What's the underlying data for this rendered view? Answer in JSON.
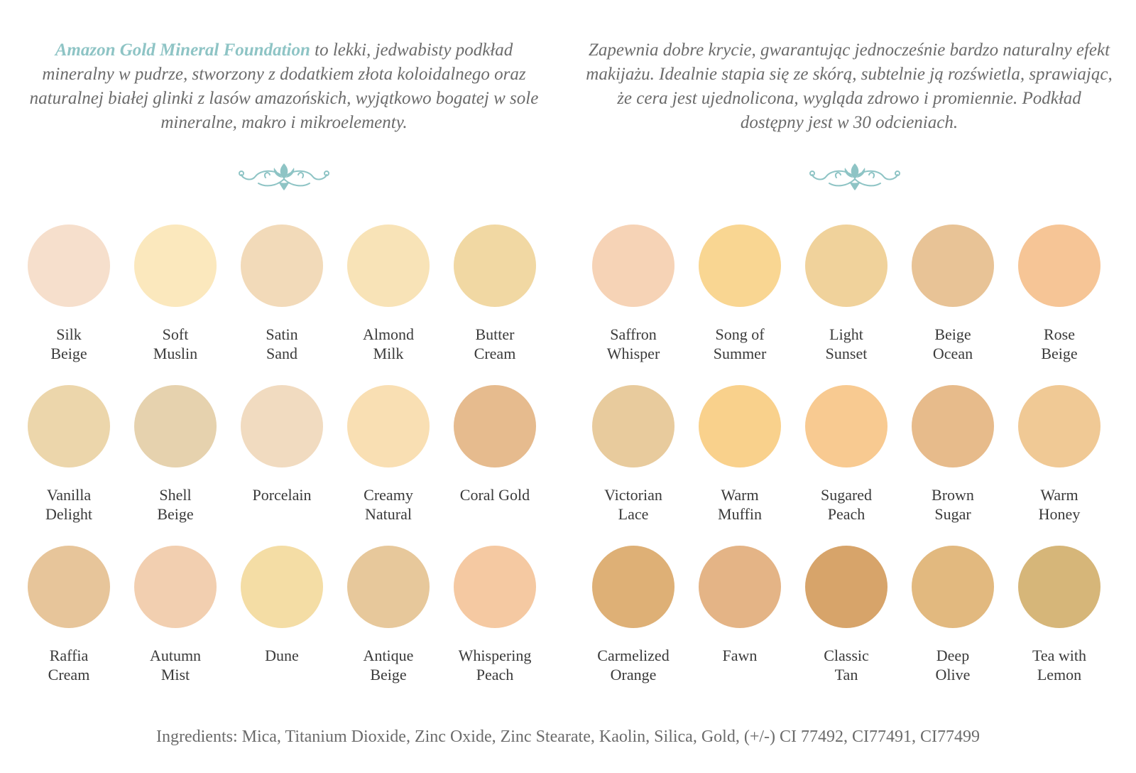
{
  "intro_left": {
    "brand": "Amazon Gold Mineral Foundation",
    "text": " to lekki, jedwabisty podkład mineralny w pudrze, stworzony z dodatkiem złota koloidalnego oraz naturalnej białej glinki z lasów amazońskich, wyjątkowo bogatej w sole mineralne, makro i mikroelementy."
  },
  "intro_right": {
    "text": "Zapewnia dobre krycie, gwarantując jednocześnie bardzo naturalny efekt makijażu. Idealnie stapia się ze skórą, subtelnie ją rozświetla, sprawiając, że cera jest ujednolicona, wygląda zdrowo i promiennie. Podkład dostępny jest w 30 odcieniach."
  },
  "ornament_icon": "floral-flourish-icon",
  "accent_color": "#8ec4c5",
  "shades_left": [
    {
      "name": "Silk\nBeige",
      "color": "#f6dfcc"
    },
    {
      "name": "Soft\nMuslin",
      "color": "#fbe8bd"
    },
    {
      "name": "Satin\nSand",
      "color": "#f2dab9"
    },
    {
      "name": "Almond\nMilk",
      "color": "#f8e3b7"
    },
    {
      "name": "Butter\nCream",
      "color": "#f1d8a3"
    },
    {
      "name": "Vanilla\nDelight",
      "color": "#ecd6ab"
    },
    {
      "name": "Shell\nBeige",
      "color": "#e6d2ae"
    },
    {
      "name": "Porcelain",
      "color": "#f1dbc0"
    },
    {
      "name": "Creamy\nNatural",
      "color": "#f9dfb3"
    },
    {
      "name": "Coral Gold",
      "color": "#e6bb8e"
    },
    {
      "name": "Raffia\nCream",
      "color": "#e7c59a"
    },
    {
      "name": "Autumn\nMist",
      "color": "#f2cfb0"
    },
    {
      "name": "Dune",
      "color": "#f4dda5"
    },
    {
      "name": "Antique\nBeige",
      "color": "#e7c89b"
    },
    {
      "name": "Whispering\nPeach",
      "color": "#f5c9a2"
    }
  ],
  "shades_right": [
    {
      "name": "Saffron\nWhisper",
      "color": "#f6d3b6"
    },
    {
      "name": "Song of\nSummer",
      "color": "#f9d692"
    },
    {
      "name": "Light\nSunset",
      "color": "#f0d29b"
    },
    {
      "name": "Beige\nOcean",
      "color": "#e8c396"
    },
    {
      "name": "Rose\nBeige",
      "color": "#f6c596"
    },
    {
      "name": "Victorian\nLace",
      "color": "#e8cb9d"
    },
    {
      "name": "Warm\nMuffin",
      "color": "#f9d18c"
    },
    {
      "name": "Sugared\nPeach",
      "color": "#f8ca91"
    },
    {
      "name": "Brown\nSugar",
      "color": "#e7bb8b"
    },
    {
      "name": "Warm\nHoney",
      "color": "#f0c995"
    },
    {
      "name": "Carmelized\nOrange",
      "color": "#deb076"
    },
    {
      "name": "Fawn",
      "color": "#e4b486"
    },
    {
      "name": "Classic\nTan",
      "color": "#d7a46a"
    },
    {
      "name": "Deep\nOlive",
      "color": "#e2b97f"
    },
    {
      "name": "Tea with\nLemon",
      "color": "#d6b679"
    }
  ],
  "ingredients": "Ingredients: Mica, Titanium Dioxide, Zinc Oxide, Zinc Stearate, Kaolin, Silica, Gold, (+/-) CI 77492, CI77491, CI77499"
}
